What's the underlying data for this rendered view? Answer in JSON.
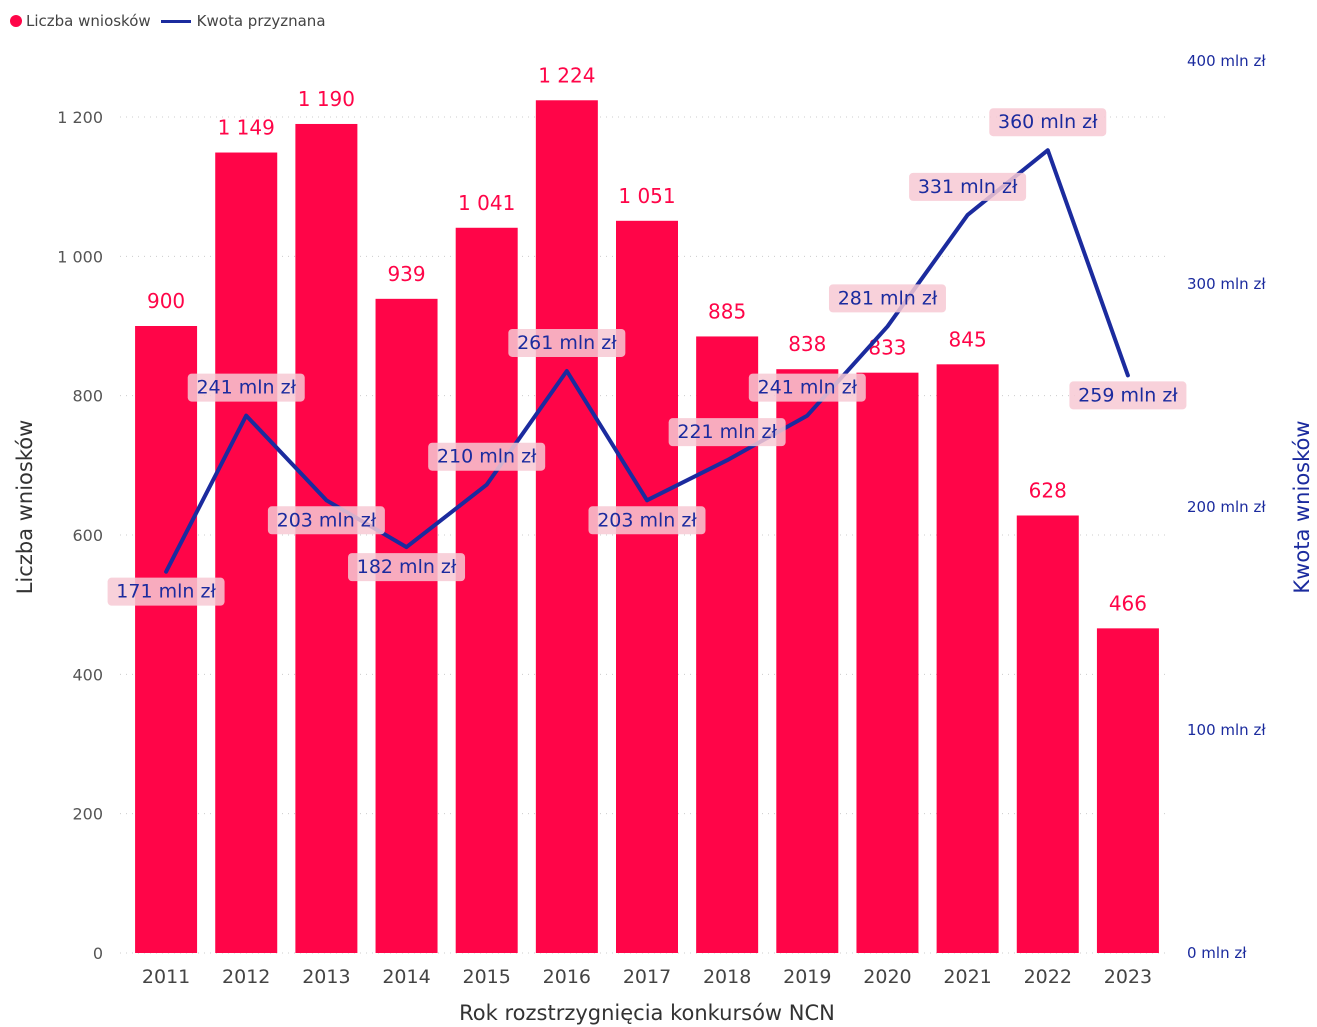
{
  "colors": {
    "bars": "#ff0548",
    "line": "#1b2b9e",
    "axis_text": "#555555",
    "grid": "#cccccc",
    "label_box": "#f7c9d4"
  },
  "legend": {
    "bars_label": "Liczba wniosków",
    "line_label": "Kwota przyznana"
  },
  "chart_data": {
    "type": "bar+line",
    "categories": [
      "2011",
      "2012",
      "2013",
      "2014",
      "2015",
      "2016",
      "2017",
      "2018",
      "2019",
      "2020",
      "2021",
      "2022",
      "2023"
    ],
    "series": [
      {
        "name": "Liczba wniosków",
        "type": "bar",
        "axis": "left",
        "values": [
          900,
          1149,
          1190,
          939,
          1041,
          1224,
          1051,
          885,
          838,
          833,
          845,
          628,
          466
        ],
        "labels": [
          "900",
          "1 149",
          "1 190",
          "939",
          "1 041",
          "1 224",
          "1 051",
          "885",
          "838",
          "833",
          "845",
          "628",
          "466"
        ]
      },
      {
        "name": "Kwota przyznana",
        "type": "line",
        "axis": "right",
        "values": [
          171,
          241,
          203,
          182,
          210,
          261,
          203,
          221,
          241,
          281,
          331,
          360,
          259
        ],
        "labels": [
          "171 mln zł",
          "241 mln zł",
          "203 mln zł",
          "182 mln zł",
          "210 mln zł",
          "261 mln zł",
          "203 mln zł",
          "221 mln zł",
          "241 mln zł",
          "281 mln zł",
          "331 mln zł",
          "360 mln zł",
          "259 mln zł"
        ]
      }
    ],
    "xlabel": "Rok rozstrzygnięcia konkursów NCN",
    "ylabel_left": "Liczba wniosków",
    "ylabel_right": "Kwota wniosków",
    "ylim_left": [
      0,
      1200
    ],
    "yticks_left": [
      "0",
      "200",
      "400",
      "600",
      "800",
      "1 000",
      "1 200"
    ],
    "ylim_right": [
      0,
      400
    ],
    "yticks_right": [
      "0 mln zł",
      "100 mln zł",
      "200 mln zł",
      "300 mln zł",
      "400 mln zł"
    ],
    "grid": "dotted horizontal",
    "legend_position": "top-left"
  }
}
